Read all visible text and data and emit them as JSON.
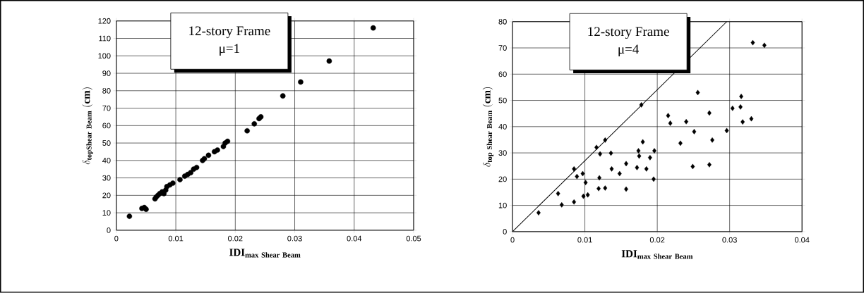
{
  "chart_data": [
    {
      "type": "scatter",
      "xlabel": "\\mathbf{IDI}_{\\mathbf{max\\ Shear\\ Beam}}",
      "ylabel": "\\delta_{\\mathbf{topShear\\ Beam}}\\ \\mathbf{(cm)}",
      "annotations": [
        "12-story Frame",
        "μ=1"
      ],
      "xlim": [
        0,
        0.05
      ],
      "ylim": [
        0,
        120
      ],
      "xticks": [
        0,
        0.01,
        0.02,
        0.03,
        0.04,
        0.05
      ],
      "yticks": [
        0,
        10,
        20,
        30,
        40,
        50,
        60,
        70,
        80,
        90,
        100,
        110,
        120
      ],
      "grid": true,
      "marker": "circle",
      "series": [
        {
          "color": "#000000",
          "x": [
            0.0022,
            0.0043,
            0.0047,
            0.005,
            0.0065,
            0.0067,
            0.007,
            0.0073,
            0.0077,
            0.008,
            0.0083,
            0.0085,
            0.009,
            0.0095,
            0.0107,
            0.0115,
            0.012,
            0.0125,
            0.013,
            0.0135,
            0.0145,
            0.0148,
            0.0155,
            0.0165,
            0.017,
            0.018,
            0.0183,
            0.0187,
            0.022,
            0.0232,
            0.024,
            0.0243,
            0.028,
            0.031,
            0.0358,
            0.0432
          ],
          "values": [
            8,
            12.5,
            13,
            12,
            18,
            19,
            20,
            21,
            22,
            21,
            23,
            25,
            26,
            27,
            29,
            31,
            32,
            33,
            35,
            36,
            40,
            41,
            43,
            45,
            46,
            48,
            50,
            51,
            57,
            61,
            64,
            65,
            77,
            85,
            97,
            116
          ]
        }
      ]
    },
    {
      "type": "scatter",
      "xlabel": "\\mathbf{IDI}_{\\mathbf{max\\ Shear\\ Beam}}",
      "ylabel": "\\delta_{\\mathbf{top\\ Shear\\ Beam}}\\ \\mathbf{(cm)}",
      "annotations": [
        "12-story Frame",
        "μ=4"
      ],
      "xlim": [
        0,
        0.04
      ],
      "ylim": [
        0,
        80
      ],
      "xticks": [
        0,
        0.01,
        0.02,
        0.03,
        0.04
      ],
      "yticks": [
        0,
        10,
        20,
        30,
        40,
        50,
        60,
        70,
        80
      ],
      "grid": true,
      "marker": "diamond",
      "series": [
        {
          "color": "#000000",
          "x": [
            0.0036,
            0.0063,
            0.0068,
            0.0085,
            0.0085,
            0.0089,
            0.0097,
            0.0101,
            0.0098,
            0.0104,
            0.012,
            0.0119,
            0.0128,
            0.0116,
            0.0121,
            0.0128,
            0.0136,
            0.0137,
            0.0148,
            0.0157,
            0.0157,
            0.0172,
            0.0174,
            0.0175,
            0.0178,
            0.018,
            0.0185,
            0.019,
            0.0196,
            0.0195,
            0.0215,
            0.0218,
            0.0232,
            0.024,
            0.0251,
            0.0249,
            0.0256,
            0.0272,
            0.0276,
            0.0272,
            0.0296,
            0.0304,
            0.0315,
            0.0316,
            0.0318,
            0.033,
            0.0332,
            0.0348
          ],
          "values": [
            7.2,
            14.5,
            10.2,
            11.3,
            23.9,
            21,
            22.1,
            18.7,
            13.5,
            14,
            20.5,
            16.4,
            16.6,
            32.1,
            29.6,
            34.9,
            29.9,
            23.9,
            22.1,
            25.9,
            16.2,
            24.4,
            30.8,
            28.8,
            48.3,
            34.2,
            23.9,
            28.2,
            30.8,
            20,
            44.2,
            41.3,
            33.7,
            41.9,
            38.1,
            24.8,
            53,
            45.2,
            34.9,
            25.5,
            38.5,
            47,
            47.5,
            51.5,
            41.8,
            43,
            72,
            71
          ]
        },
        {
          "type": "line",
          "color": "#000000",
          "marker": "none",
          "x": [
            0,
            0.0296
          ],
          "values": [
            0,
            80
          ]
        }
      ]
    }
  ]
}
